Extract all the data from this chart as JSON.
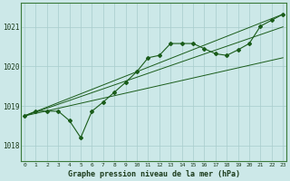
{
  "title": "Graphe pression niveau de la mer (hPa)",
  "background_color": "#cce8e8",
  "grid_color": "#a8cccc",
  "line_color": "#1a5c1a",
  "ylim": [
    1017.6,
    1021.6
  ],
  "yticks": [
    1018,
    1019,
    1020,
    1021
  ],
  "xlim": [
    -0.3,
    23.3
  ],
  "main_series": [
    1018.75,
    1018.87,
    1018.87,
    1018.87,
    1018.63,
    1018.2,
    1018.87,
    1019.1,
    1019.35,
    1019.6,
    1019.87,
    1020.22,
    1020.28,
    1020.58,
    1020.58,
    1020.58,
    1020.45,
    1020.32,
    1020.28,
    1020.42,
    1020.58,
    1021.02,
    1021.17,
    1021.32
  ],
  "line1_x": [
    0,
    23
  ],
  "line1_y": [
    1018.75,
    1021.32
  ],
  "line2_x": [
    0,
    23
  ],
  "line2_y": [
    1018.75,
    1020.22
  ],
  "line3_x": [
    0,
    23
  ],
  "line3_y": [
    1018.75,
    1021.0
  ]
}
